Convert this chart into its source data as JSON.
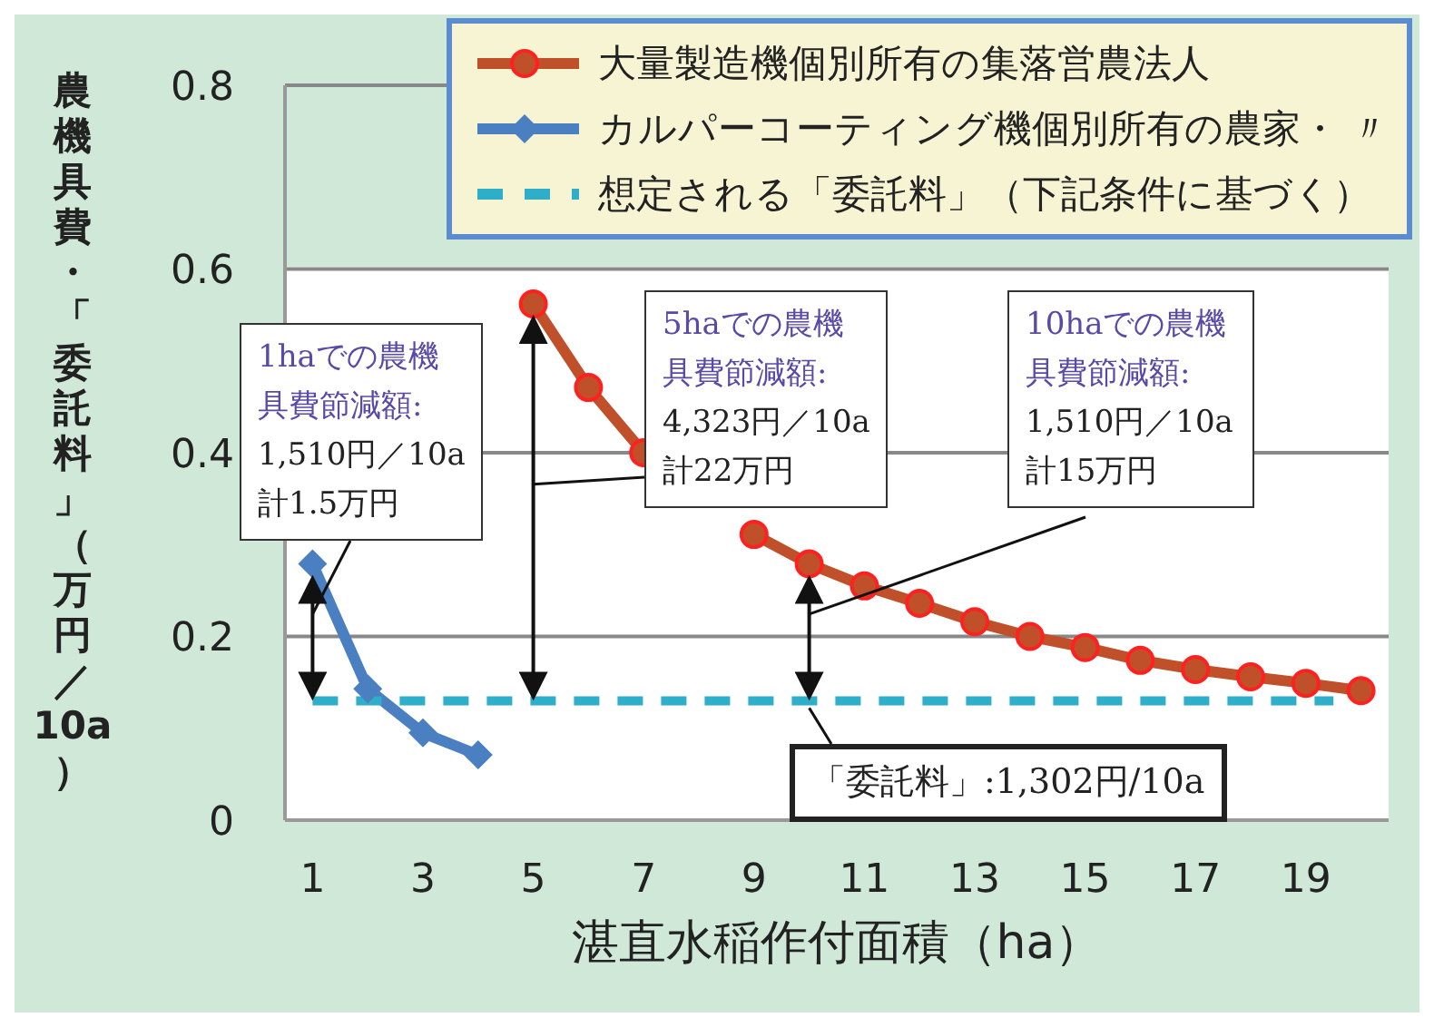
{
  "chart_data": {
    "type": "line",
    "xlabel": "湛直水稲作付面積（ha）",
    "ylabel": "農機具費・「委託料」（万円／10a）",
    "xlim": [
      0.5,
      20.5
    ],
    "xticks": [
      1,
      3,
      5,
      7,
      9,
      11,
      13,
      15,
      17,
      19
    ],
    "ylim": [
      0,
      0.8
    ],
    "yticks": [
      0,
      0.2,
      0.4,
      0.6,
      0.8
    ],
    "grid": "y",
    "legend": "top right",
    "series": [
      {
        "name": "大量製造機個別所有の集落営農法人",
        "color": "#c0502a",
        "marker": "circle",
        "line_style": "solid",
        "x": [
          5,
          6,
          7,
          8,
          9,
          10,
          11,
          12,
          13,
          14,
          15,
          16,
          17,
          18,
          19,
          20
        ],
        "values": [
          0.562,
          0.471,
          0.4,
          null,
          0.311,
          0.279,
          0.255,
          0.236,
          0.216,
          0.2,
          0.188,
          0.174,
          0.164,
          0.156,
          0.149,
          0.141
        ]
      },
      {
        "name": "カルパーコーティング機個別所有の農家・ 〃",
        "color": "#4a7fc1",
        "marker": "diamond",
        "line_style": "solid",
        "x": [
          1,
          2,
          3,
          4
        ],
        "values": [
          0.279,
          0.143,
          0.095,
          0.071
        ]
      },
      {
        "name": "想定される「委託料」（下記条件に基づく）",
        "color": "#2eaec9",
        "marker": "none",
        "line_style": "dashed",
        "x": [
          1,
          19.5
        ],
        "values": [
          0.13,
          0.13
        ]
      }
    ],
    "annotations": [
      "1haでの農機具費節減額:\n1,510円／10a\n計1.5万円",
      "5haでの農機具費節減額:\n4,323円／10a\n計22万円",
      "10haでの農機具費節減額:\n1,510円／10a\n計15万円",
      "「委託料」:1,302円/10a"
    ]
  }
}
